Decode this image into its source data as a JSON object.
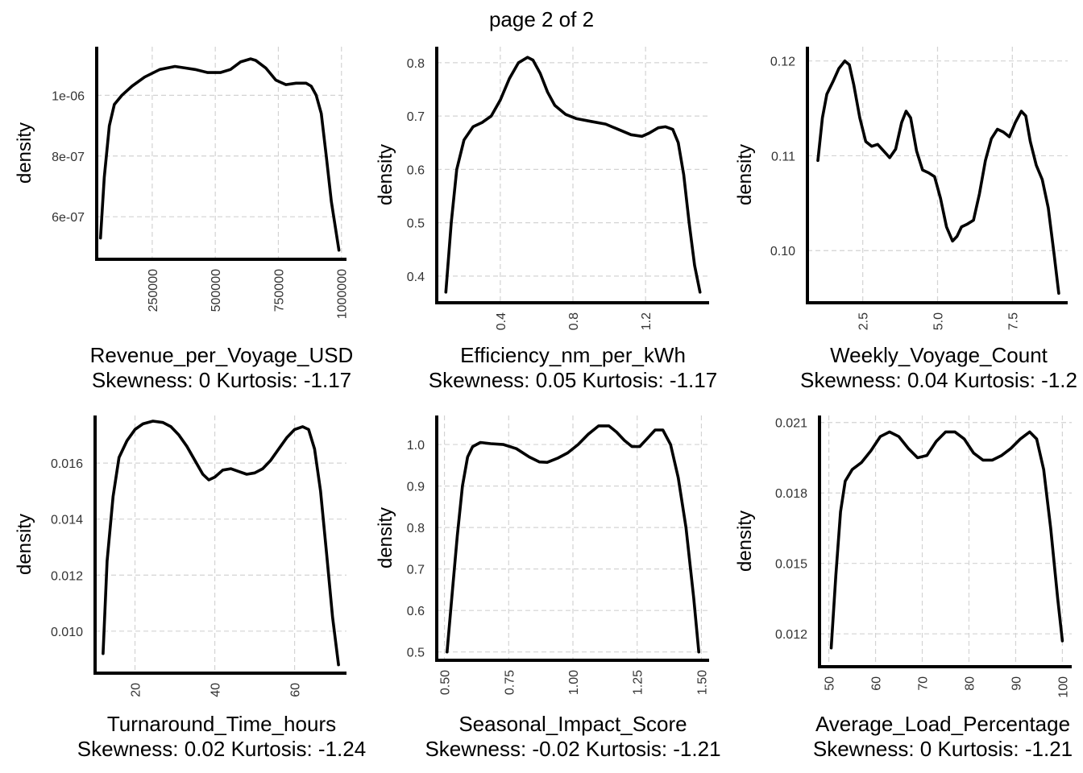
{
  "page_title": "page 2 of 2",
  "chart_data": [
    {
      "type": "line",
      "xlabel": "Revenue_per_Voyage_USD",
      "subtitle": "Skewness: 0 Kurtosis: -1.17",
      "ylabel": "density",
      "xlim": [
        30000,
        1020000
      ],
      "ylim": [
        4.6e-07,
        1.16e-06
      ],
      "x_ticks": [
        250000,
        500000,
        750000,
        1000000
      ],
      "x_tick_labels": [
        "250000",
        "500000",
        "750000",
        "1000000"
      ],
      "y_ticks": [
        6e-07,
        8e-07,
        1e-06
      ],
      "y_tick_labels": [
        "6e-07",
        "8e-07",
        "1e-06"
      ],
      "x_tick_rotation": -90,
      "series": [
        {
          "x": [
            45000,
            60000,
            80000,
            100000,
            130000,
            170000,
            220000,
            280000,
            340000,
            380000,
            420000,
            470000,
            520000,
            560000,
            600000,
            640000,
            660000,
            700000,
            740000,
            780000,
            820000,
            860000,
            880000,
            900000,
            920000,
            940000,
            960000,
            990000
          ],
          "y": [
            5.3e-07,
            7.3e-07,
            9e-07,
            9.7e-07,
            1e-06,
            1.03e-06,
            1.06e-06,
            1.085e-06,
            1.095e-06,
            1.09e-06,
            1.085e-06,
            1.075e-06,
            1.075e-06,
            1.085e-06,
            1.11e-06,
            1.12e-06,
            1.115e-06,
            1.09e-06,
            1.05e-06,
            1.035e-06,
            1.04e-06,
            1.04e-06,
            1.03e-06,
            1e-06,
            9.4e-07,
            8e-07,
            6.5e-07,
            4.9e-07
          ]
        }
      ]
    },
    {
      "type": "line",
      "xlabel": "Efficiency_nm_per_kWh",
      "subtitle": "Skewness: 0.05 Kurtosis: -1.17",
      "ylabel": "density",
      "xlim": [
        0.05,
        1.55
      ],
      "ylim": [
        0.35,
        0.83
      ],
      "x_ticks": [
        0.4,
        0.8,
        1.2
      ],
      "x_tick_labels": [
        "0.4",
        "0.8",
        "1.2"
      ],
      "y_ticks": [
        0.4,
        0.5,
        0.6,
        0.7,
        0.8
      ],
      "y_tick_labels": [
        "0.4",
        "0.5",
        "0.6",
        "0.7",
        "0.8"
      ],
      "x_tick_rotation": -90,
      "series": [
        {
          "x": [
            0.1,
            0.13,
            0.16,
            0.2,
            0.25,
            0.3,
            0.35,
            0.4,
            0.45,
            0.5,
            0.55,
            0.58,
            0.62,
            0.66,
            0.7,
            0.76,
            0.82,
            0.9,
            0.98,
            1.05,
            1.12,
            1.18,
            1.22,
            1.27,
            1.31,
            1.35,
            1.38,
            1.41,
            1.44,
            1.47,
            1.5
          ],
          "y": [
            0.37,
            0.5,
            0.6,
            0.655,
            0.68,
            0.688,
            0.7,
            0.73,
            0.77,
            0.8,
            0.81,
            0.805,
            0.78,
            0.745,
            0.72,
            0.703,
            0.695,
            0.69,
            0.685,
            0.675,
            0.665,
            0.662,
            0.668,
            0.678,
            0.68,
            0.675,
            0.65,
            0.59,
            0.5,
            0.42,
            0.37
          ]
        }
      ]
    },
    {
      "type": "line",
      "xlabel": "Weekly_Voyage_Count",
      "subtitle": "Skewness: 0.04 Kurtosis: -1.2",
      "ylabel": "density",
      "xlim": [
        0.65,
        9.35
      ],
      "ylim": [
        0.0945,
        0.1215
      ],
      "x_ticks": [
        2.5,
        5.0,
        7.5
      ],
      "x_tick_labels": [
        "2.5",
        "5.0",
        "7.5"
      ],
      "y_ticks": [
        0.1,
        0.11,
        0.12
      ],
      "y_tick_labels": [
        "0.10",
        "0.11",
        "0.12"
      ],
      "x_tick_rotation": -90,
      "series": [
        {
          "x": [
            1.0,
            1.15,
            1.3,
            1.5,
            1.7,
            1.9,
            2.05,
            2.2,
            2.4,
            2.6,
            2.8,
            3.0,
            3.2,
            3.4,
            3.6,
            3.8,
            3.95,
            4.1,
            4.3,
            4.5,
            4.7,
            4.9,
            5.1,
            5.3,
            5.5,
            5.65,
            5.8,
            6.0,
            6.2,
            6.4,
            6.6,
            6.8,
            7.0,
            7.2,
            7.4,
            7.6,
            7.8,
            7.95,
            8.1,
            8.3,
            8.5,
            8.7,
            8.9,
            9.05
          ],
          "y": [
            0.1095,
            0.114,
            0.1165,
            0.1178,
            0.1192,
            0.12,
            0.1196,
            0.1175,
            0.114,
            0.1115,
            0.111,
            0.1112,
            0.1105,
            0.1098,
            0.1107,
            0.1135,
            0.1147,
            0.114,
            0.1105,
            0.1085,
            0.1082,
            0.1078,
            0.1055,
            0.1025,
            0.101,
            0.1015,
            0.1025,
            0.1028,
            0.1032,
            0.106,
            0.1095,
            0.1118,
            0.1128,
            0.1125,
            0.112,
            0.1135,
            0.1147,
            0.1142,
            0.1115,
            0.109,
            0.1075,
            0.1045,
            0.0995,
            0.0955
          ]
        }
      ]
    },
    {
      "type": "line",
      "xlabel": "Turnaround_Time_hours",
      "subtitle": "Skewness: 0.02 Kurtosis: -1.24",
      "ylabel": "density",
      "xlim": [
        10,
        73
      ],
      "ylim": [
        0.0085,
        0.0177
      ],
      "x_ticks": [
        20,
        40,
        60
      ],
      "x_tick_labels": [
        "20",
        "40",
        "60"
      ],
      "y_ticks": [
        0.01,
        0.012,
        0.014,
        0.016
      ],
      "y_tick_labels": [
        "0.010",
        "0.012",
        "0.014",
        "0.016"
      ],
      "x_tick_rotation": -90,
      "series": [
        {
          "x": [
            12,
            13,
            14.5,
            16,
            18,
            20,
            22,
            24.5,
            27,
            29,
            31,
            33,
            35,
            37,
            38.5,
            40,
            42,
            44,
            46,
            48,
            50,
            52,
            54,
            56,
            58,
            60,
            62,
            63.5,
            65,
            66.5,
            68,
            69.5,
            71
          ],
          "y": [
            0.0092,
            0.0125,
            0.0148,
            0.0162,
            0.0168,
            0.0172,
            0.0174,
            0.0175,
            0.01745,
            0.0173,
            0.017,
            0.0166,
            0.0161,
            0.0156,
            0.0154,
            0.0155,
            0.01575,
            0.0158,
            0.0157,
            0.0156,
            0.01565,
            0.0158,
            0.0161,
            0.0165,
            0.0169,
            0.0172,
            0.0173,
            0.0172,
            0.0165,
            0.015,
            0.0128,
            0.0105,
            0.0088
          ]
        }
      ]
    },
    {
      "type": "line",
      "xlabel": "Seasonal_Impact_Score",
      "subtitle": "Skewness: -0.02 Kurtosis: -1.21",
      "ylabel": "density",
      "xlim": [
        0.47,
        1.53
      ],
      "ylim": [
        0.48,
        1.07
      ],
      "x_ticks": [
        0.5,
        0.75,
        1.0,
        1.25,
        1.5
      ],
      "x_tick_labels": [
        "0.50",
        "0.75",
        "1.00",
        "1.25",
        "1.50"
      ],
      "y_ticks": [
        0.5,
        0.6,
        0.7,
        0.8,
        0.9,
        1.0
      ],
      "y_tick_labels": [
        "0.5",
        "0.6",
        "0.7",
        "0.8",
        "0.9",
        "1.0"
      ],
      "x_tick_rotation": -90,
      "series": [
        {
          "x": [
            0.51,
            0.53,
            0.55,
            0.57,
            0.59,
            0.61,
            0.64,
            0.68,
            0.73,
            0.78,
            0.83,
            0.87,
            0.9,
            0.94,
            0.98,
            1.02,
            1.06,
            1.1,
            1.14,
            1.17,
            1.2,
            1.23,
            1.26,
            1.29,
            1.32,
            1.35,
            1.38,
            1.41,
            1.44,
            1.47,
            1.49
          ],
          "y": [
            0.5,
            0.64,
            0.78,
            0.9,
            0.97,
            0.995,
            1.005,
            1.002,
            1.0,
            0.99,
            0.97,
            0.958,
            0.957,
            0.967,
            0.98,
            1.0,
            1.025,
            1.045,
            1.045,
            1.03,
            1.01,
            0.995,
            0.995,
            1.015,
            1.035,
            1.035,
            1.0,
            0.92,
            0.8,
            0.63,
            0.5
          ]
        }
      ]
    },
    {
      "type": "line",
      "xlabel": "Average_Load_Percentage",
      "subtitle": "Skewness: 0 Kurtosis: -1.21",
      "ylabel": "density",
      "xlim": [
        48,
        102
      ],
      "ylim": [
        0.0106,
        0.0213
      ],
      "x_ticks": [
        50,
        60,
        70,
        80,
        90,
        100
      ],
      "x_tick_labels": [
        "50",
        "60",
        "70",
        "80",
        "90",
        "100"
      ],
      "y_ticks": [
        0.012,
        0.015,
        0.018,
        0.021
      ],
      "y_tick_labels": [
        "0.012",
        "0.015",
        "0.018",
        "0.021"
      ],
      "x_tick_rotation": -90,
      "series": [
        {
          "x": [
            50.5,
            51.5,
            52.5,
            53.5,
            55,
            57,
            59,
            61,
            63,
            65,
            67,
            69,
            71,
            73,
            75,
            77,
            79,
            81,
            83,
            85,
            87,
            89,
            91,
            93,
            94.5,
            96,
            97.5,
            99,
            100
          ],
          "y": [
            0.0114,
            0.0145,
            0.0172,
            0.0185,
            0.019,
            0.0193,
            0.0198,
            0.0204,
            0.0206,
            0.0204,
            0.0199,
            0.0195,
            0.0196,
            0.0202,
            0.0206,
            0.0206,
            0.0203,
            0.0197,
            0.0194,
            0.0194,
            0.0196,
            0.0199,
            0.0203,
            0.0206,
            0.0203,
            0.019,
            0.0165,
            0.0135,
            0.0117
          ]
        }
      ]
    }
  ]
}
